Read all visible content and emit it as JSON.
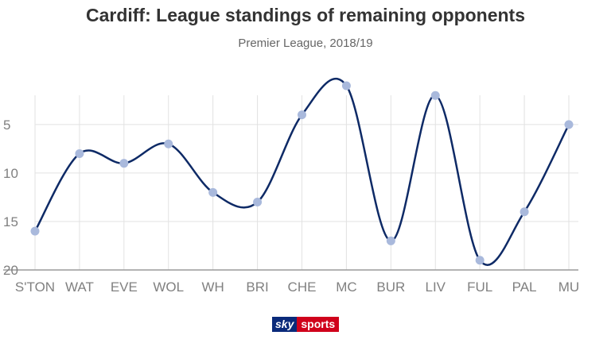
{
  "title": "Cardiff: League standings of remaining opponents",
  "subtitle": "Premier League, 2018/19",
  "logo": {
    "part1": "sky",
    "part2": "sports"
  },
  "colors": {
    "line": "#0e2a66",
    "marker": "#a9b9dc",
    "grid": "#e2e2e2",
    "axis": "#9a9a9a",
    "text": "#808080"
  },
  "chart_data": {
    "type": "line",
    "title": "Cardiff: League standings of remaining opponents",
    "subtitle": "Premier League, 2018/19",
    "categories": [
      "S'TON",
      "WAT",
      "EVE",
      "WOL",
      "WH",
      "BRI",
      "CHE",
      "MC",
      "BUR",
      "LIV",
      "FUL",
      "PAL",
      "MU"
    ],
    "values": [
      16,
      8,
      9,
      7,
      12,
      13,
      4,
      1,
      17,
      2,
      19,
      14,
      5
    ],
    "ylim": [
      20,
      1
    ],
    "y_reversed": true,
    "yticks": [
      5,
      10,
      15,
      20
    ],
    "grid": true,
    "smooth": true,
    "xlabel": "",
    "ylabel": ""
  }
}
